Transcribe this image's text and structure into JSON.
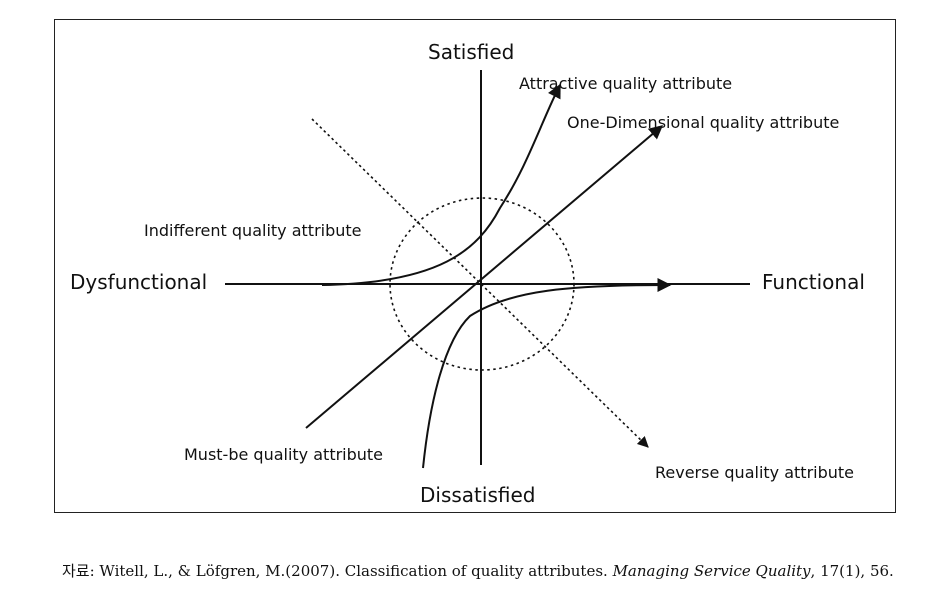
{
  "axes": {
    "top": "Satisfied",
    "bottom": "Dissatisfied",
    "left": "Dysfunctional",
    "right": "Functional"
  },
  "attributes": {
    "attractive": "Attractive quality attribute",
    "one_dimensional": "One-Dimensional quality attribute",
    "indifferent": "Indifferent quality attribute",
    "must_be": "Must-be quality attribute",
    "reverse": "Reverse quality attribute"
  },
  "caption": {
    "prefix": "자료: Witell, L., & Löfgren, M.(2007). Classification of quality attributes. ",
    "journal": "Managing Service Quality",
    "suffix": ", 17(1), 56."
  }
}
